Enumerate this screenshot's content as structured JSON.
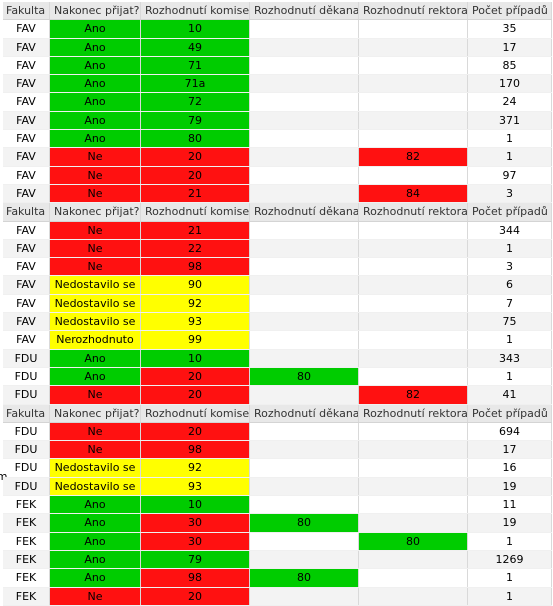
{
  "stray_text": "em",
  "headers": [
    "Fakulta",
    "Nakonec přijat?",
    "Rozhodnutí komise",
    "Rozhodnutí děkana",
    "Rozhodnutí rektora",
    "Počet případů"
  ],
  "colors": {
    "green": "#00cc00",
    "red": "#ff1111",
    "yellow": "#ffff00"
  },
  "blocks": [
    {
      "rows": [
        {
          "fakulta": "FAV",
          "prijat": "Ano",
          "komise": "10",
          "dekan": "",
          "rektor": "",
          "pocet": "35",
          "c2": "g",
          "c3": "g",
          "c4": "",
          "c5": ""
        },
        {
          "fakulta": "FAV",
          "prijat": "Ano",
          "komise": "49",
          "dekan": "",
          "rektor": "",
          "pocet": "17",
          "c2": "g",
          "c3": "g",
          "c4": "",
          "c5": ""
        },
        {
          "fakulta": "FAV",
          "prijat": "Ano",
          "komise": "71",
          "dekan": "",
          "rektor": "",
          "pocet": "85",
          "c2": "g",
          "c3": "g",
          "c4": "",
          "c5": ""
        },
        {
          "fakulta": "FAV",
          "prijat": "Ano",
          "komise": "71a",
          "dekan": "",
          "rektor": "",
          "pocet": "170",
          "c2": "g",
          "c3": "g",
          "c4": "",
          "c5": ""
        },
        {
          "fakulta": "FAV",
          "prijat": "Ano",
          "komise": "72",
          "dekan": "",
          "rektor": "",
          "pocet": "24",
          "c2": "g",
          "c3": "g",
          "c4": "",
          "c5": ""
        },
        {
          "fakulta": "FAV",
          "prijat": "Ano",
          "komise": "79",
          "dekan": "",
          "rektor": "",
          "pocet": "371",
          "c2": "g",
          "c3": "g",
          "c4": "",
          "c5": ""
        },
        {
          "fakulta": "FAV",
          "prijat": "Ano",
          "komise": "80",
          "dekan": "",
          "rektor": "",
          "pocet": "1",
          "c2": "g",
          "c3": "g",
          "c4": "",
          "c5": ""
        },
        {
          "fakulta": "FAV",
          "prijat": "Ne",
          "komise": "20",
          "dekan": "",
          "rektor": "82",
          "pocet": "1",
          "c2": "r",
          "c3": "r",
          "c4": "",
          "c5": "r"
        },
        {
          "fakulta": "FAV",
          "prijat": "Ne",
          "komise": "20",
          "dekan": "",
          "rektor": "",
          "pocet": "97",
          "c2": "r",
          "c3": "r",
          "c4": "",
          "c5": ""
        },
        {
          "fakulta": "FAV",
          "prijat": "Ne",
          "komise": "21",
          "dekan": "",
          "rektor": "84",
          "pocet": "3",
          "c2": "r",
          "c3": "r",
          "c4": "",
          "c5": "r"
        }
      ]
    },
    {
      "rows": [
        {
          "fakulta": "FAV",
          "prijat": "Ne",
          "komise": "21",
          "dekan": "",
          "rektor": "",
          "pocet": "344",
          "c2": "r",
          "c3": "r",
          "c4": "",
          "c5": ""
        },
        {
          "fakulta": "FAV",
          "prijat": "Ne",
          "komise": "22",
          "dekan": "",
          "rektor": "",
          "pocet": "1",
          "c2": "r",
          "c3": "r",
          "c4": "",
          "c5": ""
        },
        {
          "fakulta": "FAV",
          "prijat": "Ne",
          "komise": "98",
          "dekan": "",
          "rektor": "",
          "pocet": "3",
          "c2": "r",
          "c3": "r",
          "c4": "",
          "c5": ""
        },
        {
          "fakulta": "FAV",
          "prijat": "Nedostavilo se",
          "komise": "90",
          "dekan": "",
          "rektor": "",
          "pocet": "6",
          "c2": "y",
          "c3": "y",
          "c4": "",
          "c5": ""
        },
        {
          "fakulta": "FAV",
          "prijat": "Nedostavilo se",
          "komise": "92",
          "dekan": "",
          "rektor": "",
          "pocet": "7",
          "c2": "y",
          "c3": "y",
          "c4": "",
          "c5": ""
        },
        {
          "fakulta": "FAV",
          "prijat": "Nedostavilo se",
          "komise": "93",
          "dekan": "",
          "rektor": "",
          "pocet": "75",
          "c2": "y",
          "c3": "y",
          "c4": "",
          "c5": ""
        },
        {
          "fakulta": "FAV",
          "prijat": "Nerozhodnuto",
          "komise": "99",
          "dekan": "",
          "rektor": "",
          "pocet": "1",
          "c2": "y",
          "c3": "y",
          "c4": "",
          "c5": ""
        },
        {
          "fakulta": "FDU",
          "prijat": "Ano",
          "komise": "10",
          "dekan": "",
          "rektor": "",
          "pocet": "343",
          "c2": "g",
          "c3": "g",
          "c4": "",
          "c5": ""
        },
        {
          "fakulta": "FDU",
          "prijat": "Ano",
          "komise": "20",
          "dekan": "80",
          "rektor": "",
          "pocet": "1",
          "c2": "g",
          "c3": "r",
          "c4": "g",
          "c5": ""
        },
        {
          "fakulta": "FDU",
          "prijat": "Ne",
          "komise": "20",
          "dekan": "",
          "rektor": "82",
          "pocet": "41",
          "c2": "r",
          "c3": "r",
          "c4": "",
          "c5": "r"
        }
      ]
    },
    {
      "rows": [
        {
          "fakulta": "FDU",
          "prijat": "Ne",
          "komise": "20",
          "dekan": "",
          "rektor": "",
          "pocet": "694",
          "c2": "r",
          "c3": "r",
          "c4": "",
          "c5": ""
        },
        {
          "fakulta": "FDU",
          "prijat": "Ne",
          "komise": "98",
          "dekan": "",
          "rektor": "",
          "pocet": "17",
          "c2": "r",
          "c3": "r",
          "c4": "",
          "c5": ""
        },
        {
          "fakulta": "FDU",
          "prijat": "Nedostavilo se",
          "komise": "92",
          "dekan": "",
          "rektor": "",
          "pocet": "16",
          "c2": "y",
          "c3": "y",
          "c4": "",
          "c5": ""
        },
        {
          "fakulta": "FDU",
          "prijat": "Nedostavilo se",
          "komise": "93",
          "dekan": "",
          "rektor": "",
          "pocet": "19",
          "c2": "y",
          "c3": "y",
          "c4": "",
          "c5": ""
        },
        {
          "fakulta": "FEK",
          "prijat": "Ano",
          "komise": "10",
          "dekan": "",
          "rektor": "",
          "pocet": "11",
          "c2": "g",
          "c3": "g",
          "c4": "",
          "c5": ""
        },
        {
          "fakulta": "FEK",
          "prijat": "Ano",
          "komise": "30",
          "dekan": "80",
          "rektor": "",
          "pocet": "19",
          "c2": "g",
          "c3": "r",
          "c4": "g",
          "c5": ""
        },
        {
          "fakulta": "FEK",
          "prijat": "Ano",
          "komise": "30",
          "dekan": "",
          "rektor": "80",
          "pocet": "1",
          "c2": "g",
          "c3": "r",
          "c4": "",
          "c5": "g"
        },
        {
          "fakulta": "FEK",
          "prijat": "Ano",
          "komise": "79",
          "dekan": "",
          "rektor": "",
          "pocet": "1269",
          "c2": "g",
          "c3": "g",
          "c4": "",
          "c5": ""
        },
        {
          "fakulta": "FEK",
          "prijat": "Ano",
          "komise": "98",
          "dekan": "80",
          "rektor": "",
          "pocet": "1",
          "c2": "g",
          "c3": "r",
          "c4": "g",
          "c5": ""
        },
        {
          "fakulta": "FEK",
          "prijat": "Ne",
          "komise": "20",
          "dekan": "",
          "rektor": "",
          "pocet": "1",
          "c2": "r",
          "c3": "r",
          "c4": "",
          "c5": ""
        }
      ]
    }
  ]
}
